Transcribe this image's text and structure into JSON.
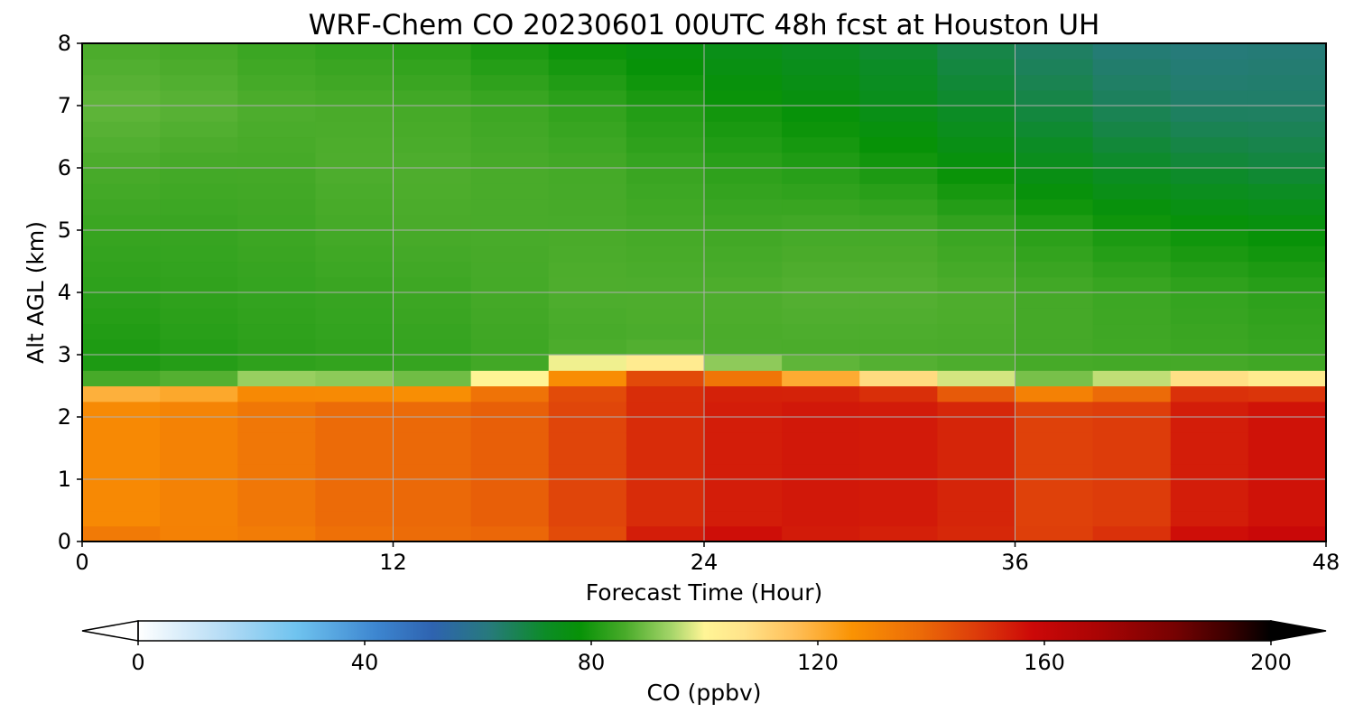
{
  "chart_data": {
    "type": "heatmap",
    "title": "WRF-Chem CO  20230601 00UTC 48h fcst at Houston UH",
    "xlabel": "Forecast Time (Hour)",
    "ylabel": "Alt AGL (km)",
    "xlim": [
      0,
      48
    ],
    "ylim": [
      0,
      8
    ],
    "xticks": [
      0,
      12,
      24,
      36,
      48
    ],
    "xtick_labels": [
      "0",
      "12",
      "24",
      "36",
      "48"
    ],
    "yticks": [
      0,
      1,
      2,
      3,
      4,
      5,
      6,
      7,
      8
    ],
    "ytick_labels": [
      "0",
      "1",
      "2",
      "3",
      "4",
      "5",
      "6",
      "7",
      "8"
    ],
    "grid": true,
    "colorbar": {
      "label": "CO  (ppbv)",
      "range": [
        0,
        200
      ],
      "ticks": [
        0,
        40,
        80,
        120,
        160,
        200
      ],
      "tick_labels": [
        "0",
        "40",
        "80",
        "120",
        "160",
        "200"
      ],
      "extend": "both",
      "orientation": "horizontal",
      "placement": "bottom",
      "stops": [
        [
          0,
          "#ffffff"
        ],
        [
          15,
          "#b5dcf5"
        ],
        [
          28,
          "#6fc3ef"
        ],
        [
          42,
          "#3d86d0"
        ],
        [
          52,
          "#2e63b0"
        ],
        [
          62,
          "#277a7c"
        ],
        [
          72,
          "#0c8c26"
        ],
        [
          78,
          "#079207"
        ],
        [
          86,
          "#49ab2a"
        ],
        [
          94,
          "#a3d468"
        ],
        [
          100,
          "#fff596"
        ],
        [
          107,
          "#ffe38a"
        ],
        [
          116,
          "#ffbf58"
        ],
        [
          126,
          "#fa9303"
        ],
        [
          138,
          "#ec6b08"
        ],
        [
          148,
          "#dd3c0a"
        ],
        [
          158,
          "#cc0808"
        ],
        [
          170,
          "#a80404"
        ],
        [
          183,
          "#760202"
        ],
        [
          192,
          "#3e0000"
        ],
        [
          200,
          "#000000"
        ]
      ]
    },
    "time_hours": [
      0,
      3,
      6,
      9,
      12,
      15,
      18,
      21,
      24,
      27,
      30,
      33,
      36,
      39,
      42,
      45,
      48
    ],
    "altitude_km": [
      0,
      0.25,
      0.5,
      0.75,
      1,
      1.25,
      1.5,
      1.75,
      2,
      2.25,
      2.5,
      2.75,
      3,
      3.25,
      3.5,
      3.75,
      4,
      4.25,
      4.5,
      4.75,
      5,
      5.25,
      5.5,
      5.75,
      6,
      6.25,
      6.5,
      6.75,
      7,
      7.25,
      7.5,
      7.75,
      8
    ],
    "boundary_layer_top_km": [
      2.5,
      2.45,
      2.5,
      2.55,
      2.45,
      2.5,
      2.6,
      2.85,
      2.75,
      2.65,
      2.6,
      2.55,
      2.45,
      2.45,
      2.55,
      2.6,
      2.5
    ],
    "bl_mean_ppbv": [
      128,
      130,
      132,
      137,
      139,
      138,
      143,
      149,
      153,
      155,
      155,
      154,
      151,
      143,
      153,
      155,
      157
    ],
    "sfc_ppbv": [
      140,
      133,
      130,
      134,
      137,
      137,
      138,
      150,
      162,
      156,
      152,
      153,
      150,
      145,
      158,
      160,
      162
    ],
    "free_troposphere_ppbv": {
      "alt_km": [
        3,
        4,
        5,
        6,
        7,
        8
      ],
      "values": [
        [
          80,
          82,
          84,
          86,
          88,
          86
        ],
        [
          81,
          83,
          84,
          86,
          88,
          86
        ],
        [
          82,
          83,
          84,
          85,
          87,
          85
        ],
        [
          83,
          84,
          85,
          86,
          86,
          83
        ],
        [
          83,
          84,
          86,
          87,
          86,
          83
        ],
        [
          84,
          85,
          86,
          86,
          85,
          81
        ],
        [
          85,
          86,
          86,
          86,
          84,
          79
        ],
        [
          86,
          87,
          86,
          85,
          82,
          77
        ],
        [
          86,
          86,
          85,
          83,
          80,
          75
        ],
        [
          86,
          87,
          85,
          82,
          78,
          73
        ],
        [
          86,
          87,
          86,
          81,
          76,
          72
        ],
        [
          86,
          87,
          85,
          79,
          73,
          69
        ],
        [
          86,
          86,
          83,
          76,
          70,
          66
        ],
        [
          85,
          85,
          81,
          73,
          67,
          63
        ],
        [
          85,
          84,
          79,
          71,
          65,
          62
        ],
        [
          84,
          83,
          78,
          70,
          64,
          62
        ],
        [
          84,
          82,
          77,
          69,
          65,
          63
        ]
      ]
    }
  }
}
